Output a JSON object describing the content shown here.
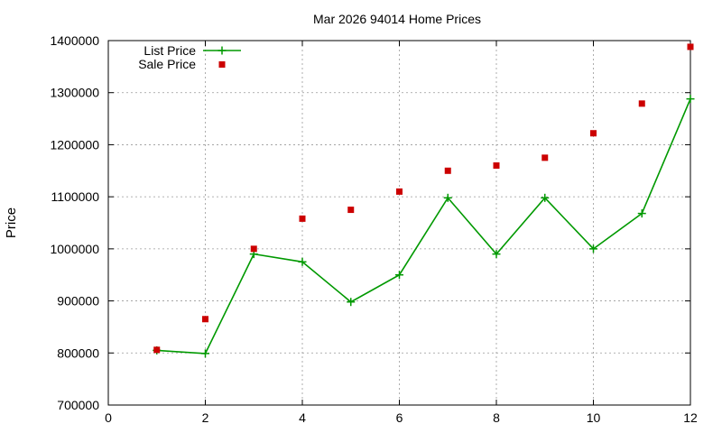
{
  "chart_data": {
    "type": "line",
    "title": "Mar 2026 94014 Home Prices",
    "xlabel": "",
    "ylabel": "Price",
    "xlim": [
      0,
      12
    ],
    "ylim": [
      700000,
      1400000
    ],
    "x_ticks": [
      "0",
      "2",
      "4",
      "6",
      "8",
      "10",
      "12"
    ],
    "y_ticks": [
      "700000",
      "800000",
      "900000",
      "1000000",
      "1100000",
      "1200000",
      "1300000",
      "1400000"
    ],
    "grid": true,
    "legend": "top-left",
    "series": [
      {
        "name": "List Price",
        "style": "line-with-plus-markers",
        "color": "#009900",
        "x": [
          1,
          2,
          3,
          4,
          5,
          6,
          7,
          8,
          9,
          10,
          11,
          12
        ],
        "values": [
          805000,
          799000,
          990000,
          975000,
          898000,
          950000,
          1098000,
          990000,
          1098000,
          1000000,
          1068000,
          1288000
        ]
      },
      {
        "name": "Sale Price",
        "style": "square-points",
        "color": "#cc0000",
        "x": [
          1,
          2,
          3,
          4,
          5,
          6,
          7,
          8,
          9,
          10,
          11,
          12
        ],
        "values": [
          806000,
          865000,
          1000000,
          1058000,
          1075000,
          1110000,
          1150000,
          1160000,
          1175000,
          1222000,
          1279000,
          1388000
        ]
      }
    ]
  }
}
